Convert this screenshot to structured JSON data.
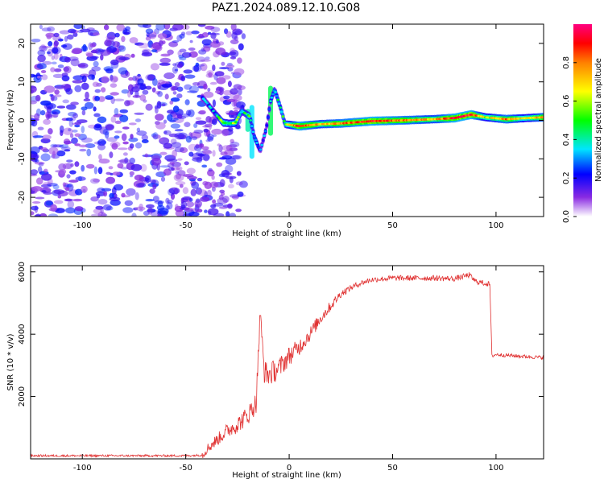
{
  "title": "PAZ1.2024.089.12.10.G08",
  "chart_data": [
    {
      "type": "heatmap",
      "xlabel": "Height of straight line (km)",
      "ylabel": "Frequency (Hz)",
      "xlim": [
        -125,
        123
      ],
      "ylim": [
        -25,
        25
      ],
      "xticks": [
        -100,
        -50,
        0,
        50,
        100
      ],
      "yticks": [
        -20,
        -10,
        0,
        10,
        20
      ],
      "colorbar": {
        "label": "Normalized spectral amplitude",
        "range": [
          0,
          1
        ],
        "ticks": [
          0.0,
          0.2,
          0.4,
          0.6,
          0.8
        ]
      },
      "features": {
        "noise_region_x": [
          -125,
          -22
        ],
        "noise_amplitude": [
          0.02,
          0.2
        ],
        "ridge": [
          {
            "x": -42,
            "f": 6,
            "a": 0.3
          },
          {
            "x": -36,
            "f": 2,
            "a": 0.3
          },
          {
            "x": -32,
            "f": -0.6,
            "a": 0.6
          },
          {
            "x": -29,
            "f": -0.8,
            "a": 0.5
          },
          {
            "x": -26,
            "f": -0.7,
            "a": 0.6
          },
          {
            "x": -23,
            "f": 2.5,
            "a": 0.4
          },
          {
            "x": -19,
            "f": 1,
            "a": 0.5
          },
          {
            "x": -17,
            "f": -4,
            "a": 0.35
          },
          {
            "x": -14,
            "f": -8,
            "a": 0.25
          },
          {
            "x": -11,
            "f": -2,
            "a": 0.3
          },
          {
            "x": -9,
            "f": 5,
            "a": 0.3
          },
          {
            "x": -7,
            "f": 8,
            "a": 0.4
          },
          {
            "x": -4,
            "f": 3,
            "a": 0.4
          },
          {
            "x": -2,
            "f": -1,
            "a": 0.5
          },
          {
            "x": 5,
            "f": -1.5,
            "a": 0.9
          },
          {
            "x": 15,
            "f": -1,
            "a": 0.7
          },
          {
            "x": 25,
            "f": -0.8,
            "a": 0.8
          },
          {
            "x": 40,
            "f": -0.2,
            "a": 0.9
          },
          {
            "x": 55,
            "f": 0,
            "a": 0.8
          },
          {
            "x": 70,
            "f": 0.3,
            "a": 0.7
          },
          {
            "x": 80,
            "f": 0.6,
            "a": 0.9
          },
          {
            "x": 88,
            "f": 1.5,
            "a": 0.9
          },
          {
            "x": 95,
            "f": 0.8,
            "a": 0.6
          },
          {
            "x": 105,
            "f": 0.3,
            "a": 0.8
          },
          {
            "x": 115,
            "f": 0.6,
            "a": 0.6
          },
          {
            "x": 123,
            "f": 0.8,
            "a": 0.8
          }
        ]
      }
    },
    {
      "type": "line",
      "xlabel": "Height of straight line (km)",
      "ylabel": "SNR (10 * v/v)",
      "xlim": [
        -125,
        123
      ],
      "ylim": [
        0,
        6200
      ],
      "xticks": [
        -100,
        -50,
        0,
        50,
        100
      ],
      "yticks": [
        2000,
        4000,
        6000
      ],
      "color": "#e03030",
      "series": [
        {
          "x": [
            -125,
            -100,
            -75,
            -50,
            -42,
            -40,
            -35,
            -30,
            -25,
            -20,
            -16,
            -14,
            -12,
            -10,
            -5,
            0,
            5,
            10,
            15,
            20,
            25,
            30,
            35,
            40,
            50,
            60,
            70,
            80,
            87,
            90,
            97,
            98,
            100,
            110,
            123
          ],
          "values": [
            100,
            100,
            100,
            100,
            120,
            300,
            600,
            900,
            1100,
            1400,
            1800,
            4600,
            2800,
            2700,
            2900,
            3300,
            3600,
            4000,
            4500,
            4900,
            5300,
            5500,
            5650,
            5750,
            5800,
            5800,
            5800,
            5780,
            5900,
            5700,
            5600,
            3300,
            3350,
            3300,
            3250
          ]
        }
      ]
    }
  ]
}
